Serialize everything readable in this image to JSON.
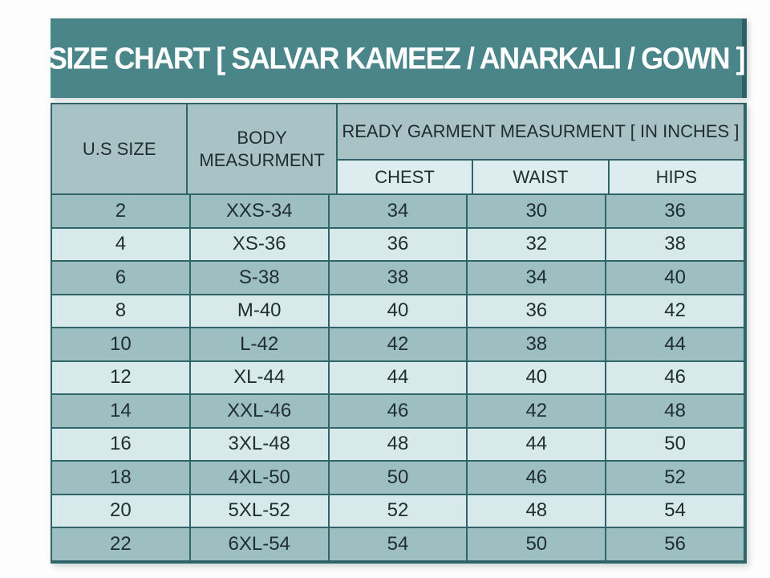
{
  "title": "SIZE CHART [ SALVAR KAMEEZ / ANARKALI / GOWN ]",
  "colors": {
    "title_bg": "#4a8589",
    "title_text": "#ffffff",
    "header_bg": "#a9c2c6",
    "subheader_bg": "#ddecee",
    "row_dark": "#9dbfc2",
    "row_light": "#d7e9ea",
    "border": "#2f6569",
    "cell_text": "#212e31",
    "page_bg": "#fdfdfd"
  },
  "chart_data": {
    "type": "table",
    "title": "SIZE CHART [ SALVAR KAMEEZ / ANARKALI / GOWN ]",
    "column_headers": {
      "us_size": "U.S SIZE",
      "body_measurement": "BODY MEASURMENT",
      "group": "READY GARMENT MEASURMENT [ IN INCHES ]",
      "sub": [
        "CHEST",
        "WAIST",
        "HIPS"
      ]
    },
    "rows": [
      {
        "us_size": "2",
        "body": "XXS-34",
        "chest": 34,
        "waist": 30,
        "hips": 36
      },
      {
        "us_size": "4",
        "body": "XS-36",
        "chest": 36,
        "waist": 32,
        "hips": 38
      },
      {
        "us_size": "6",
        "body": "S-38",
        "chest": 38,
        "waist": 34,
        "hips": 40
      },
      {
        "us_size": "8",
        "body": "M-40",
        "chest": 40,
        "waist": 36,
        "hips": 42
      },
      {
        "us_size": "10",
        "body": "L-42",
        "chest": 42,
        "waist": 38,
        "hips": 44
      },
      {
        "us_size": "12",
        "body": "XL-44",
        "chest": 44,
        "waist": 40,
        "hips": 46
      },
      {
        "us_size": "14",
        "body": "XXL-46",
        "chest": 46,
        "waist": 42,
        "hips": 48
      },
      {
        "us_size": "16",
        "body": "3XL-48",
        "chest": 48,
        "waist": 44,
        "hips": 50
      },
      {
        "us_size": "18",
        "body": "4XL-50",
        "chest": 50,
        "waist": 46,
        "hips": 52
      },
      {
        "us_size": "20",
        "body": "5XL-52",
        "chest": 52,
        "waist": 48,
        "hips": 54
      },
      {
        "us_size": "22",
        "body": "6XL-54",
        "chest": 54,
        "waist": 50,
        "hips": 56
      }
    ]
  }
}
